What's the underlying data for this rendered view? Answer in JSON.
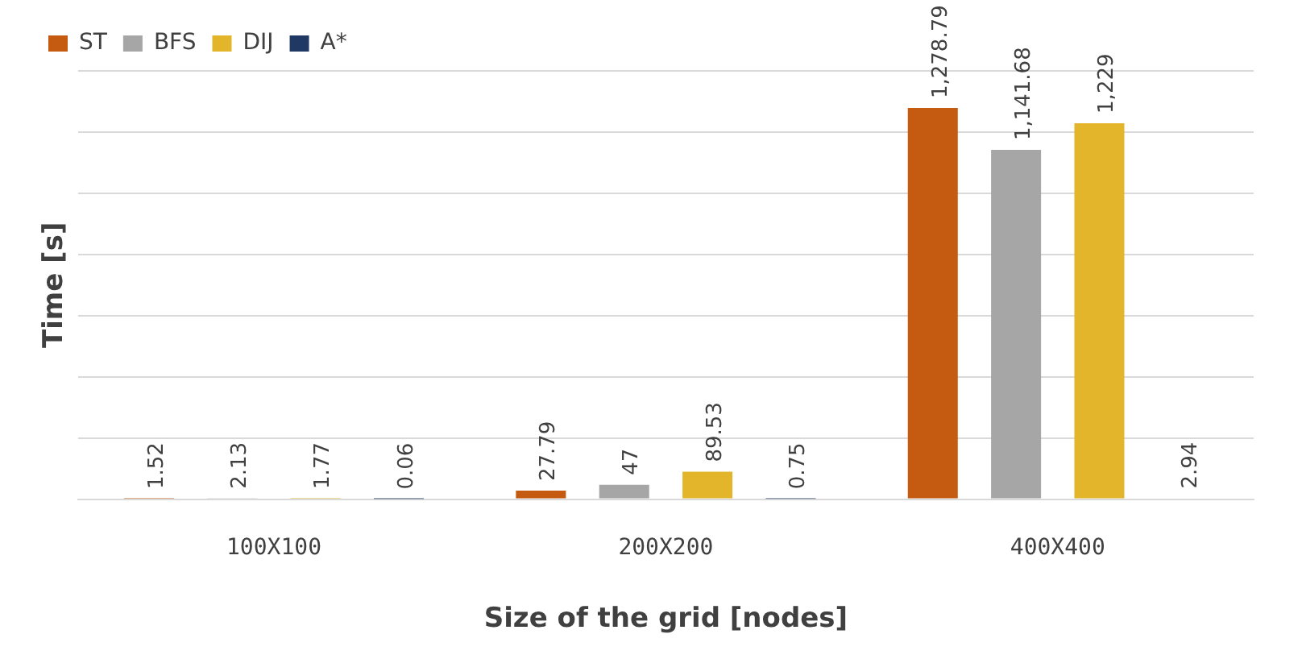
{
  "chart_data": {
    "type": "bar",
    "xlabel": "Size of the grid [nodes]",
    "ylabel": "Time [s]",
    "categories": [
      "100X100",
      "200X200",
      "400X400"
    ],
    "series": [
      {
        "name": "ST",
        "color": "#c55a11",
        "values": [
          1.52,
          27.79,
          1278.79
        ],
        "value_labels": [
          "1.52",
          "27.79",
          "1,278.79"
        ]
      },
      {
        "name": "BFS",
        "color": "#a6a6a6",
        "values": [
          2.13,
          47,
          1141.68
        ],
        "value_labels": [
          "2.13",
          "47",
          "1,141.68"
        ]
      },
      {
        "name": "DIJ",
        "color": "#e2b52a",
        "values": [
          1.77,
          89.53,
          1229
        ],
        "value_labels": [
          "1.77",
          "89.53",
          "1,229"
        ]
      },
      {
        "name": "A*",
        "color": "#1f3864",
        "values": [
          0.06,
          0.75,
          2.94
        ],
        "value_labels": [
          "0.06",
          "0.75",
          "2.94"
        ]
      }
    ],
    "ylim": [
      0,
      1400
    ],
    "yticks": [
      {
        "value": 0,
        "label": null
      },
      {
        "value": 200,
        "label": null
      },
      {
        "value": 400,
        "label": null
      },
      {
        "value": 600,
        "label": null
      },
      {
        "value": 800,
        "label": null
      },
      {
        "value": 1000,
        "label": null
      },
      {
        "value": 1200,
        "label": null
      },
      {
        "value": 1400,
        "label": null
      }
    ],
    "tick_labels": "x",
    "grid": "y",
    "legend": "top left"
  }
}
